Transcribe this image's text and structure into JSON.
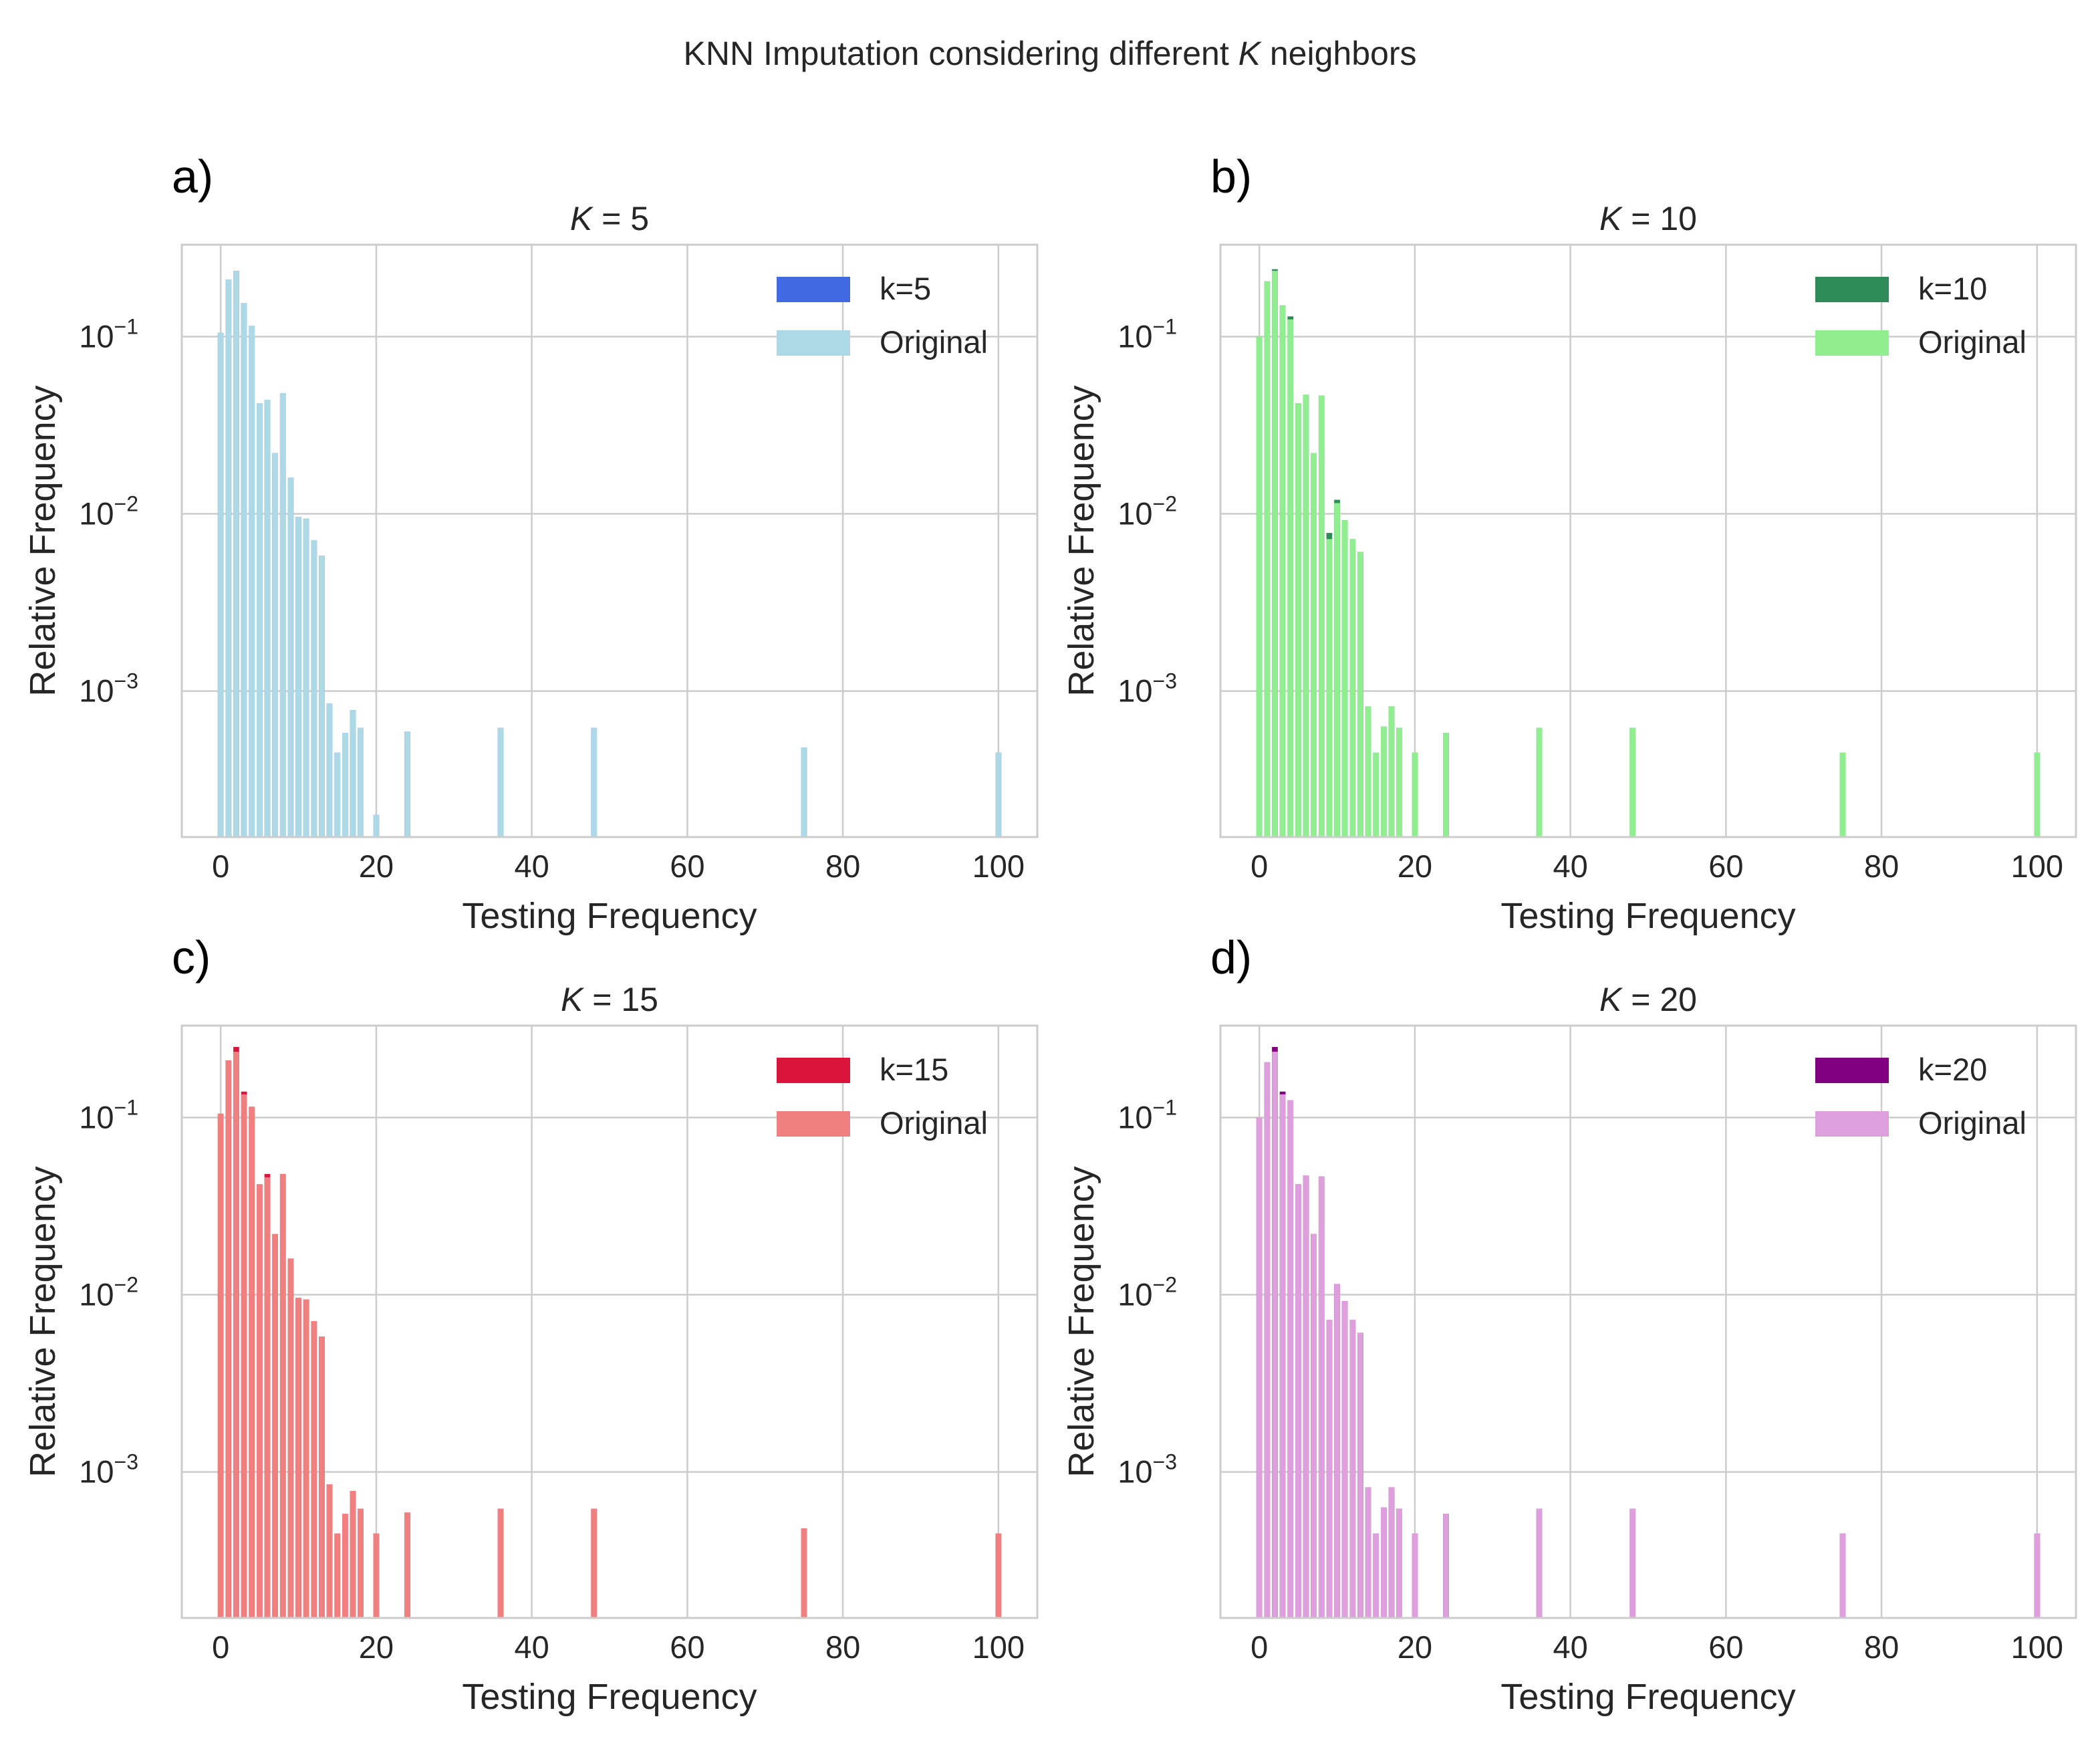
{
  "figure": {
    "title_prefix": "KNN Imputation considering different ",
    "title_var": "K",
    "title_suffix": " neighbors",
    "xlabel": "Testing Frequency",
    "ylabel": "Relative Frequency"
  },
  "chart_data": [
    {
      "type": "bar",
      "panel_label": "a)",
      "title_var": "K",
      "title_rest": " = 5",
      "xlabel": "Testing Frequency",
      "ylabel": "Relative Frequency",
      "xlim": [
        -5,
        105
      ],
      "ylim": [
        0.00015,
        0.33
      ],
      "yscale": "log",
      "xticks": [
        0,
        20,
        40,
        60,
        80,
        100
      ],
      "yticks": [
        {
          "base": "10",
          "exp": "−1",
          "value": 0.1
        },
        {
          "base": "10",
          "exp": "−2",
          "value": 0.01
        },
        {
          "base": "10",
          "exp": "−3",
          "value": 0.001
        }
      ],
      "grid": true,
      "legend_position": "top-right",
      "series": [
        {
          "name": "k=5",
          "color": "#4169e1",
          "x": [
            0,
            1,
            2,
            3,
            4,
            5,
            6,
            7,
            8,
            9,
            10,
            11,
            12,
            13,
            14,
            15,
            16,
            17,
            18,
            20,
            24,
            36,
            48,
            75,
            100
          ],
          "values": [
            0.105,
            0.21,
            0.235,
            0.155,
            0.115,
            0.042,
            0.044,
            0.022,
            0.048,
            0.016,
            0.0096,
            0.0094,
            0.0071,
            0.0058,
            0.00085,
            0.00045,
            0.00058,
            0.00078,
            0.00062,
            0.0002,
            0.00059,
            0.00062,
            0.00062,
            0.00048,
            0.00045
          ]
        },
        {
          "name": "Original",
          "color": "#add8e6",
          "x": [
            0,
            1,
            2,
            3,
            4,
            5,
            6,
            7,
            8,
            9,
            10,
            11,
            12,
            13,
            14,
            15,
            16,
            17,
            18,
            20,
            24,
            36,
            48,
            75,
            100
          ],
          "values": [
            0.105,
            0.21,
            0.235,
            0.155,
            0.115,
            0.042,
            0.044,
            0.022,
            0.048,
            0.016,
            0.0096,
            0.0094,
            0.0071,
            0.0058,
            0.00085,
            0.00045,
            0.00058,
            0.00078,
            0.00062,
            0.0002,
            0.00059,
            0.00062,
            0.00062,
            0.00048,
            0.00045
          ]
        }
      ]
    },
    {
      "type": "bar",
      "panel_label": "b)",
      "title_var": "K",
      "title_rest": " = 10",
      "xlabel": "Testing Frequency",
      "ylabel": "Relative Frequency",
      "xlim": [
        -5,
        105
      ],
      "ylim": [
        0.00015,
        0.33
      ],
      "yscale": "log",
      "xticks": [
        0,
        20,
        40,
        60,
        80,
        100
      ],
      "yticks": [
        {
          "base": "10",
          "exp": "−1",
          "value": 0.1
        },
        {
          "base": "10",
          "exp": "−2",
          "value": 0.01
        },
        {
          "base": "10",
          "exp": "−3",
          "value": 0.001
        }
      ],
      "grid": true,
      "legend_position": "top-right",
      "series": [
        {
          "name": "k=10",
          "color": "#2e8b57",
          "x": [
            0,
            1,
            2,
            3,
            4,
            5,
            6,
            7,
            8,
            9,
            10,
            11,
            12,
            13,
            14,
            15,
            16,
            17,
            18,
            20,
            24,
            36,
            48,
            75,
            100
          ],
          "values": [
            0.1,
            0.205,
            0.24,
            0.15,
            0.13,
            0.042,
            0.047,
            0.022,
            0.0465,
            0.0078,
            0.012,
            0.0092,
            0.0072,
            0.0061,
            0.00082,
            0.00045,
            0.00063,
            0.00082,
            0.00062,
            0.00045,
            0.00058,
            0.00062,
            0.00062,
            0.00045,
            0.00045
          ]
        },
        {
          "name": "Original",
          "color": "#90ee90",
          "x": [
            0,
            1,
            2,
            3,
            4,
            5,
            6,
            7,
            8,
            9,
            10,
            11,
            12,
            13,
            14,
            15,
            16,
            17,
            18,
            20,
            24,
            36,
            48,
            75,
            100
          ],
          "values": [
            0.1,
            0.205,
            0.235,
            0.15,
            0.125,
            0.042,
            0.047,
            0.022,
            0.0465,
            0.0072,
            0.0115,
            0.0092,
            0.0072,
            0.0061,
            0.00082,
            0.00045,
            0.00063,
            0.00082,
            0.00062,
            0.00045,
            0.00058,
            0.00062,
            0.00062,
            0.00045,
            0.00045
          ]
        }
      ]
    },
    {
      "type": "bar",
      "panel_label": "c)",
      "title_var": "K",
      "title_rest": " = 15",
      "xlabel": "Testing Frequency",
      "ylabel": "Relative Frequency",
      "xlim": [
        -5,
        105
      ],
      "ylim": [
        0.00015,
        0.33
      ],
      "yscale": "log",
      "xticks": [
        0,
        20,
        40,
        60,
        80,
        100
      ],
      "yticks": [
        {
          "base": "10",
          "exp": "−1",
          "value": 0.1
        },
        {
          "base": "10",
          "exp": "−2",
          "value": 0.01
        },
        {
          "base": "10",
          "exp": "−3",
          "value": 0.001
        }
      ],
      "grid": true,
      "legend_position": "top-right",
      "series": [
        {
          "name": "k=15",
          "color": "#dc143c",
          "x": [
            0,
            1,
            2,
            3,
            4,
            5,
            6,
            7,
            8,
            9,
            10,
            11,
            12,
            13,
            14,
            15,
            16,
            17,
            18,
            20,
            24,
            36,
            48,
            75,
            100
          ],
          "values": [
            0.105,
            0.21,
            0.25,
            0.14,
            0.115,
            0.042,
            0.048,
            0.022,
            0.048,
            0.016,
            0.0096,
            0.0094,
            0.0071,
            0.0058,
            0.00085,
            0.00045,
            0.00058,
            0.00078,
            0.00062,
            0.00045,
            0.00059,
            0.00062,
            0.00062,
            0.00048,
            0.00045
          ]
        },
        {
          "name": "Original",
          "color": "#f08080",
          "x": [
            0,
            1,
            2,
            3,
            4,
            5,
            6,
            7,
            8,
            9,
            10,
            11,
            12,
            13,
            14,
            15,
            16,
            17,
            18,
            20,
            24,
            36,
            48,
            75,
            100
          ],
          "values": [
            0.105,
            0.21,
            0.235,
            0.135,
            0.115,
            0.042,
            0.046,
            0.022,
            0.048,
            0.016,
            0.0096,
            0.0094,
            0.0071,
            0.0058,
            0.00085,
            0.00045,
            0.00058,
            0.00078,
            0.00062,
            0.00045,
            0.00059,
            0.00062,
            0.00062,
            0.00048,
            0.00045
          ]
        }
      ]
    },
    {
      "type": "bar",
      "panel_label": "d)",
      "title_var": "K",
      "title_rest": " = 20",
      "xlabel": "Testing Frequency",
      "ylabel": "Relative Frequency",
      "xlim": [
        -5,
        105
      ],
      "ylim": [
        0.00015,
        0.33
      ],
      "yscale": "log",
      "xticks": [
        0,
        20,
        40,
        60,
        80,
        100
      ],
      "yticks": [
        {
          "base": "10",
          "exp": "−1",
          "value": 0.1
        },
        {
          "base": "10",
          "exp": "−2",
          "value": 0.01
        },
        {
          "base": "10",
          "exp": "−3",
          "value": 0.001
        }
      ],
      "grid": true,
      "legend_position": "top-right",
      "series": [
        {
          "name": "k=20",
          "color": "#800080",
          "x": [
            0,
            1,
            2,
            3,
            4,
            5,
            6,
            7,
            8,
            9,
            10,
            11,
            12,
            13,
            14,
            15,
            16,
            17,
            18,
            20,
            24,
            36,
            48,
            75,
            100
          ],
          "values": [
            0.1,
            0.205,
            0.25,
            0.14,
            0.125,
            0.042,
            0.047,
            0.022,
            0.0465,
            0.0072,
            0.0115,
            0.0092,
            0.0072,
            0.0061,
            0.00082,
            0.00045,
            0.00063,
            0.00082,
            0.00062,
            0.00045,
            0.00058,
            0.00062,
            0.00062,
            0.00045,
            0.00045
          ]
        },
        {
          "name": "Original",
          "color": "#dda0dd",
          "x": [
            0,
            1,
            2,
            3,
            4,
            5,
            6,
            7,
            8,
            9,
            10,
            11,
            12,
            13,
            14,
            15,
            16,
            17,
            18,
            20,
            24,
            36,
            48,
            75,
            100
          ],
          "values": [
            0.1,
            0.205,
            0.235,
            0.135,
            0.125,
            0.042,
            0.047,
            0.022,
            0.0465,
            0.0072,
            0.0115,
            0.0092,
            0.0072,
            0.0061,
            0.00082,
            0.00045,
            0.00063,
            0.00082,
            0.00062,
            0.00045,
            0.00058,
            0.00062,
            0.00062,
            0.00045,
            0.00045
          ]
        }
      ]
    }
  ]
}
